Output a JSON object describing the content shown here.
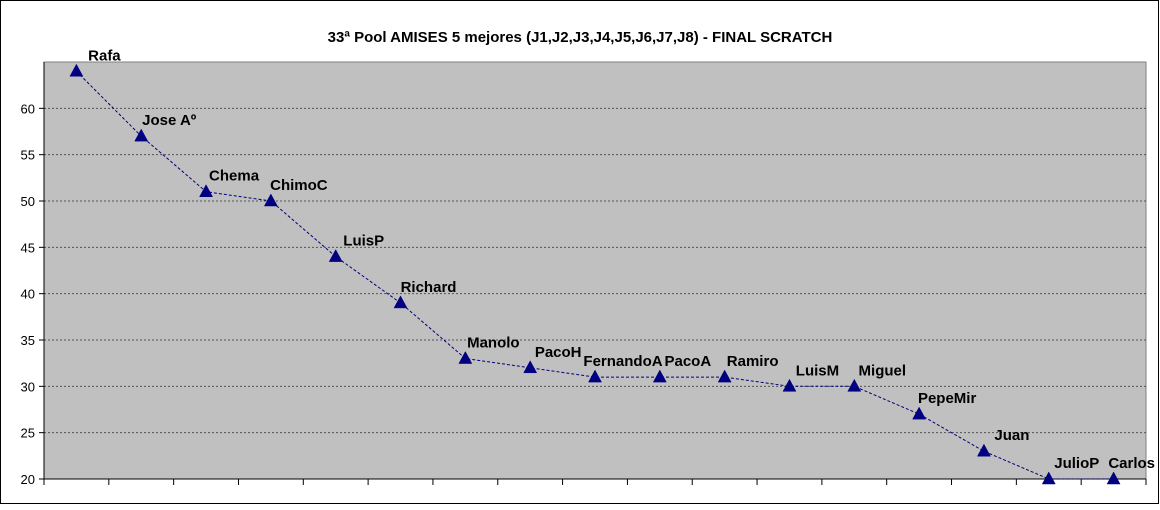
{
  "chart_data": {
    "type": "line",
    "title": "33ª Pool AMISES 5 mejores (J1,J2,J3,J4,J5,J6,J7,J8) - FINAL SCRATCH",
    "xlabel": "",
    "ylabel": "",
    "ylim": [
      20,
      65
    ],
    "yticks": [
      20,
      25,
      30,
      35,
      40,
      45,
      50,
      55,
      60
    ],
    "grid": true,
    "legend": "none",
    "colors": {
      "plot_background": "#c0c0c0",
      "series": "#000080",
      "gridline": "#555555"
    },
    "categories": [
      "Rafa",
      "Jose Aº",
      "Chema",
      "ChimoC",
      "LuisP",
      "Richard",
      "Manolo",
      "PacoH",
      "FernandoA",
      "PacoA",
      "Ramiro",
      "LuisM",
      "Miguel",
      "PepeMir",
      "Juan",
      "JulioP",
      "Carlos"
    ],
    "series": [
      {
        "marker": "triangle",
        "values": [
          64,
          57,
          51,
          50,
          44,
          39,
          33,
          32,
          31,
          31,
          31,
          30,
          30,
          27,
          23,
          20,
          20
        ]
      }
    ]
  }
}
